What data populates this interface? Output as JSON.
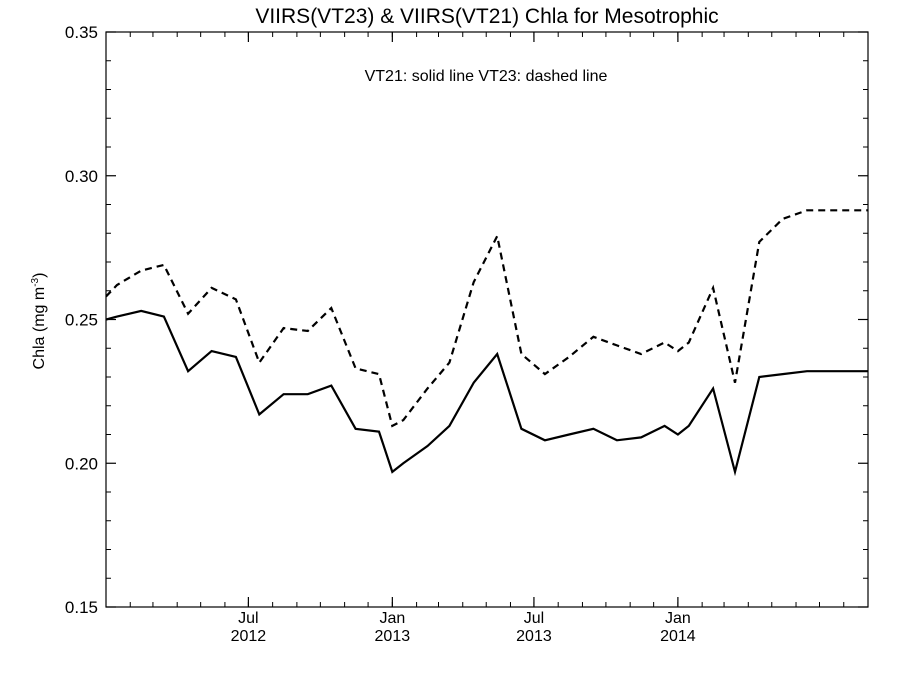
{
  "chart_data": {
    "type": "line",
    "title": "VIIRS(VT23) & VIIRS(VT21)  Chla for Mesotrophic",
    "annotation": "VT21: solid line   VT23: dashed line",
    "ylabel_main": "Chla (mg m",
    "ylabel_sup": "-3",
    "ylabel_end": ")",
    "ylim": [
      0.15,
      0.35
    ],
    "xlim": [
      "2012-01-01",
      "2014-09-01"
    ],
    "yticks": [
      {
        "value": 0.15,
        "label": "0.15"
      },
      {
        "value": 0.2,
        "label": "0.20"
      },
      {
        "value": 0.25,
        "label": "0.25"
      },
      {
        "value": 0.3,
        "label": "0.30"
      },
      {
        "value": 0.35,
        "label": "0.35"
      }
    ],
    "xticks": [
      {
        "date": "2012-07-01",
        "month": "Jul",
        "year": "2012"
      },
      {
        "date": "2013-01-01",
        "month": "Jan",
        "year": "2013"
      },
      {
        "date": "2013-07-01",
        "month": "Jul",
        "year": "2013"
      },
      {
        "date": "2014-01-01",
        "month": "Jan",
        "year": "2014"
      }
    ],
    "x": [
      "2012-01-01",
      "2012-02-01",
      "2012-03-01",
      "2012-04-01",
      "2012-05-01",
      "2012-06-01",
      "2012-07-01",
      "2012-08-01",
      "2012-09-01",
      "2012-10-01",
      "2012-11-01",
      "2012-12-01",
      "2013-01-01",
      "2013-02-01",
      "2013-03-01",
      "2013-04-01",
      "2013-05-01",
      "2013-06-01",
      "2013-07-01",
      "2013-08-01",
      "2013-09-01",
      "2013-10-01",
      "2013-11-01",
      "2013-12-01",
      "2014-01-01",
      "2014-02-01",
      "2014-03-01",
      "2014-04-01",
      "2014-05-01",
      "2014-06-01"
    ],
    "series": [
      {
        "name": "VT21",
        "style": "solid",
        "x": [
          "2012-01-01",
          "2012-01-15",
          "2012-02-15",
          "2012-03-15",
          "2012-04-15",
          "2012-05-15",
          "2012-06-15",
          "2012-07-15",
          "2012-08-15",
          "2012-09-15",
          "2012-10-15",
          "2012-11-15",
          "2012-12-15",
          "2013-01-01",
          "2013-01-15",
          "2013-02-15",
          "2013-03-15",
          "2013-04-15",
          "2013-05-15",
          "2013-06-15",
          "2013-07-15",
          "2013-08-15",
          "2013-09-15",
          "2013-10-15",
          "2013-11-15",
          "2013-12-15",
          "2014-01-01",
          "2014-01-15",
          "2014-02-15",
          "2014-03-15",
          "2014-04-15",
          "2014-05-15",
          "2014-06-15",
          "2014-07-15",
          "2014-08-15",
          "2014-09-01"
        ],
        "values": [
          0.25,
          0.251,
          0.253,
          0.251,
          0.232,
          0.239,
          0.237,
          0.217,
          0.224,
          0.224,
          0.227,
          0.212,
          0.211,
          0.197,
          0.2,
          0.206,
          0.213,
          0.228,
          0.238,
          0.212,
          0.208,
          0.21,
          0.212,
          0.208,
          0.209,
          0.213,
          0.21,
          0.213,
          0.226,
          0.197,
          0.23,
          0.231,
          0.232,
          0.232,
          0.232,
          0.232
        ]
      },
      {
        "name": "VT23",
        "style": "dashed",
        "x": [
          "2012-01-01",
          "2012-01-15",
          "2012-02-15",
          "2012-03-15",
          "2012-04-15",
          "2012-05-15",
          "2012-06-15",
          "2012-07-15",
          "2012-08-15",
          "2012-09-15",
          "2012-10-15",
          "2012-11-15",
          "2012-12-15",
          "2013-01-01",
          "2013-01-15",
          "2013-02-15",
          "2013-03-15",
          "2013-04-15",
          "2013-05-15",
          "2013-06-15",
          "2013-07-15",
          "2013-08-15",
          "2013-09-15",
          "2013-10-15",
          "2013-11-15",
          "2013-12-15",
          "2014-01-01",
          "2014-01-15",
          "2014-02-15",
          "2014-03-15",
          "2014-04-15",
          "2014-05-15",
          "2014-06-15",
          "2014-07-15",
          "2014-08-15",
          "2014-09-01"
        ],
        "values": [
          0.258,
          0.262,
          0.267,
          0.269,
          0.252,
          0.261,
          0.257,
          0.235,
          0.247,
          0.246,
          0.254,
          0.233,
          0.231,
          0.213,
          0.215,
          0.226,
          0.235,
          0.263,
          0.279,
          0.238,
          0.231,
          0.237,
          0.244,
          0.241,
          0.238,
          0.242,
          0.239,
          0.242,
          0.261,
          0.228,
          0.277,
          0.285,
          0.288,
          0.288,
          0.288,
          0.288
        ]
      }
    ],
    "grid": false,
    "legend": "none"
  }
}
